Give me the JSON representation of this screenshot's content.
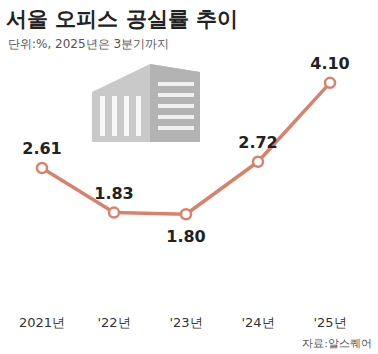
{
  "chart_data": {
    "type": "line",
    "title": "서울 오피스 공실률 추이",
    "subtitle": "단위:%, 2025년은 3분기까지",
    "source": "자료:알스퀘어",
    "categories": [
      "2021년",
      "'22년",
      "'23년",
      "'24년",
      "'25년"
    ],
    "values": [
      2.61,
      1.83,
      1.8,
      2.72,
      4.1
    ],
    "value_labels": [
      "2.61",
      "1.83",
      "1.80",
      "2.72",
      "4.10"
    ],
    "color": "#d9826b",
    "marker": "circle",
    "ylim": [
      1.0,
      4.5
    ],
    "grid": false,
    "data_labels": true,
    "tick_labels": "x"
  }
}
